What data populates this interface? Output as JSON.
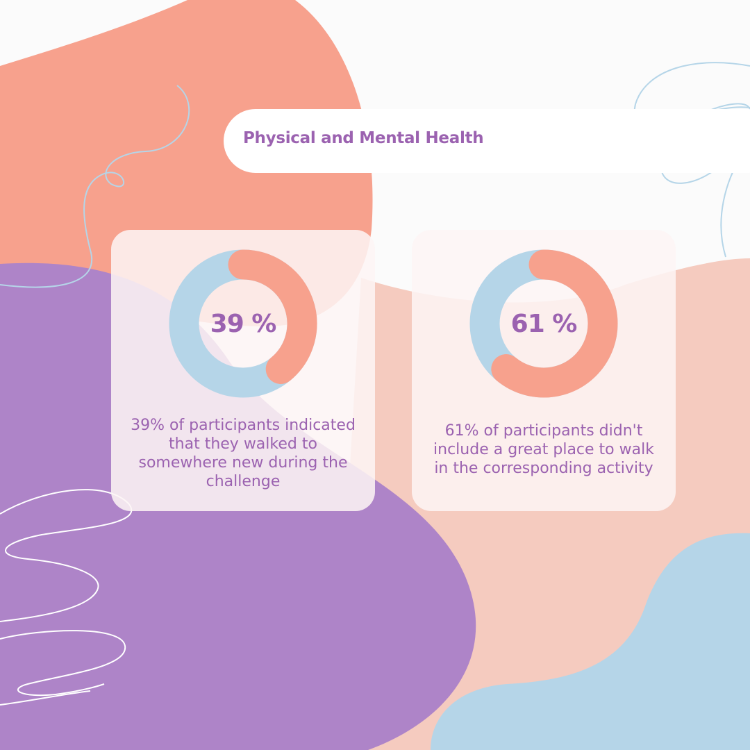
{
  "title": "Physical and Mental Health",
  "colors": {
    "background": "#fbfbfb",
    "blob_coral": "#f7a18d",
    "blob_purple": "#ae84c8",
    "blob_peach": "#f5cbbf",
    "blob_blue": "#b5d5e8",
    "text_purple": "#9b62b0",
    "ring_track": "#b5d5e8",
    "ring_value": "#f7a18d"
  },
  "chart_data": [
    {
      "type": "pie",
      "value": 39,
      "remainder": 61,
      "center_label": "39 %",
      "caption": "39% of participants indicated that they walked to somewhere new during the challenge"
    },
    {
      "type": "pie",
      "value": 61,
      "remainder": 39,
      "center_label": "61 %",
      "caption": "61% of participants didn't include a great place to walk in the corresponding activity"
    }
  ]
}
